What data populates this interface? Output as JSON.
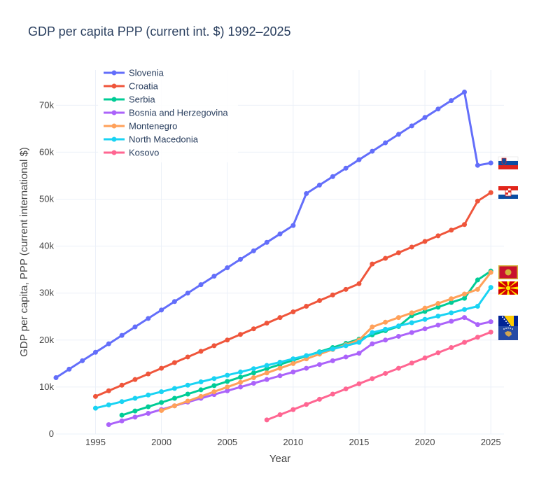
{
  "chart_data": {
    "type": "line",
    "title": "GDP per capita PPP (current int. $) 1992–2025",
    "xlabel": "Year",
    "ylabel": "GDP per capita, PPP (current international $)",
    "xlim": [
      1992,
      2026
    ],
    "ylim": [
      0,
      77500
    ],
    "x_ticks": [
      1995,
      2000,
      2005,
      2010,
      2015,
      2020,
      2025
    ],
    "y_ticks": [
      0,
      10000,
      20000,
      30000,
      40000,
      50000,
      60000,
      70000
    ],
    "y_tick_labels": [
      "0",
      "10k",
      "20k",
      "30k",
      "40k",
      "50k",
      "60k",
      "70k"
    ],
    "grid": true,
    "legend_position": "top-left",
    "series": [
      {
        "name": "Slovenia",
        "color": "#636efa",
        "flag_icon": "slovenia-flag-icon",
        "x": [
          1992,
          1993,
          1994,
          1995,
          1996,
          1997,
          1998,
          1999,
          2000,
          2001,
          2002,
          2003,
          2004,
          2005,
          2006,
          2007,
          2008,
          2009,
          2010,
          2011,
          2012,
          2013,
          2014,
          2015,
          2016,
          2017,
          2018,
          2019,
          2020,
          2021,
          2022,
          2023,
          2024,
          2025
        ],
        "values": [
          12000,
          13800,
          15600,
          17400,
          19200,
          21000,
          22800,
          24600,
          26400,
          28200,
          30000,
          31800,
          33600,
          35400,
          37200,
          39000,
          40800,
          42600,
          44400,
          51200,
          53000,
          54800,
          56600,
          58400,
          60200,
          62000,
          63800,
          65600,
          67400,
          69200,
          71000,
          72800,
          57200,
          57700
        ]
      },
      {
        "name": "Croatia",
        "color": "#ef553b",
        "flag_icon": "croatia-flag-icon",
        "x": [
          1995,
          1996,
          1997,
          1998,
          1999,
          2000,
          2001,
          2002,
          2003,
          2004,
          2005,
          2006,
          2007,
          2008,
          2009,
          2010,
          2011,
          2012,
          2013,
          2014,
          2015,
          2016,
          2017,
          2018,
          2019,
          2020,
          2021,
          2022,
          2023,
          2024,
          2025
        ],
        "values": [
          8000,
          9200,
          10400,
          11600,
          12800,
          14000,
          15200,
          16400,
          17600,
          18800,
          20000,
          21200,
          22400,
          23600,
          24800,
          26000,
          27200,
          28400,
          29600,
          30800,
          32000,
          36200,
          37400,
          38600,
          39800,
          41000,
          42200,
          43400,
          44600,
          49600,
          51400
        ]
      },
      {
        "name": "Serbia",
        "color": "#00cc96",
        "flag_icon": "serbia-flag-icon",
        "x": [
          1997,
          1998,
          1999,
          2000,
          2001,
          2002,
          2003,
          2004,
          2005,
          2006,
          2007,
          2008,
          2009,
          2010,
          2011,
          2012,
          2013,
          2014,
          2015,
          2016,
          2017,
          2018,
          2019,
          2020,
          2021,
          2022,
          2023,
          2024,
          2025
        ],
        "values": [
          4000,
          4900,
          5800,
          6700,
          7600,
          8500,
          9400,
          10300,
          11200,
          12100,
          13000,
          13900,
          14800,
          15700,
          16600,
          17500,
          18400,
          19300,
          20200,
          21100,
          22000,
          22900,
          25200,
          26100,
          27000,
          28000,
          28900,
          32800,
          34700
        ]
      },
      {
        "name": "Bosnia and Herzegovina",
        "color": "#ab63fa",
        "flag_icon": "bosnia-flag-icon",
        "x": [
          1996,
          1997,
          1998,
          1999,
          2000,
          2001,
          2002,
          2003,
          2004,
          2005,
          2006,
          2007,
          2008,
          2009,
          2010,
          2011,
          2012,
          2013,
          2014,
          2015,
          2016,
          2017,
          2018,
          2019,
          2020,
          2021,
          2022,
          2023,
          2024,
          2025
        ],
        "values": [
          2000,
          2800,
          3600,
          4400,
          5200,
          6000,
          6800,
          7600,
          8400,
          9200,
          10000,
          10800,
          11600,
          12400,
          13200,
          14000,
          14800,
          15600,
          16400,
          17200,
          19200,
          20000,
          20800,
          21600,
          22400,
          23200,
          24000,
          24800,
          23300,
          23900
        ]
      },
      {
        "name": "Montenegro",
        "color": "#ffa15a",
        "flag_icon": "montenegro-flag-icon",
        "x": [
          2000,
          2001,
          2002,
          2003,
          2004,
          2005,
          2006,
          2007,
          2008,
          2009,
          2010,
          2011,
          2012,
          2013,
          2014,
          2015,
          2016,
          2017,
          2018,
          2019,
          2020,
          2021,
          2022,
          2023,
          2024,
          2025
        ],
        "values": [
          5000,
          6000,
          7000,
          8000,
          9000,
          10000,
          11000,
          12000,
          13000,
          14000,
          15000,
          16000,
          17000,
          18000,
          19000,
          20000,
          22800,
          23800,
          24800,
          25800,
          26800,
          27800,
          28800,
          29800,
          30800,
          34400
        ]
      },
      {
        "name": "North Macedonia",
        "color": "#19d3f3",
        "flag_icon": "north-macedonia-flag-icon",
        "x": [
          1995,
          1996,
          1997,
          1998,
          1999,
          2000,
          2001,
          2002,
          2003,
          2004,
          2005,
          2006,
          2007,
          2008,
          2009,
          2010,
          2011,
          2012,
          2013,
          2014,
          2015,
          2016,
          2017,
          2018,
          2019,
          2020,
          2021,
          2022,
          2023,
          2024,
          2025
        ],
        "values": [
          5500,
          6200,
          6900,
          7600,
          8300,
          9000,
          9700,
          10400,
          11100,
          11800,
          12500,
          13200,
          13900,
          14600,
          15300,
          16000,
          16700,
          17400,
          18100,
          18800,
          19500,
          21600,
          22300,
          23000,
          23700,
          24400,
          25100,
          25800,
          26500,
          27200,
          31200
        ]
      },
      {
        "name": "Kosovo",
        "color": "#ff6692",
        "flag_icon": "kosovo-flag-icon",
        "x": [
          2008,
          2009,
          2010,
          2011,
          2012,
          2013,
          2014,
          2015,
          2016,
          2017,
          2018,
          2019,
          2020,
          2021,
          2022,
          2023,
          2024,
          2025
        ],
        "values": [
          3000,
          4100,
          5200,
          6300,
          7400,
          8500,
          9600,
          10700,
          11800,
          12900,
          14000,
          15100,
          16200,
          17300,
          18400,
          19500,
          20600,
          21700
        ]
      }
    ]
  }
}
